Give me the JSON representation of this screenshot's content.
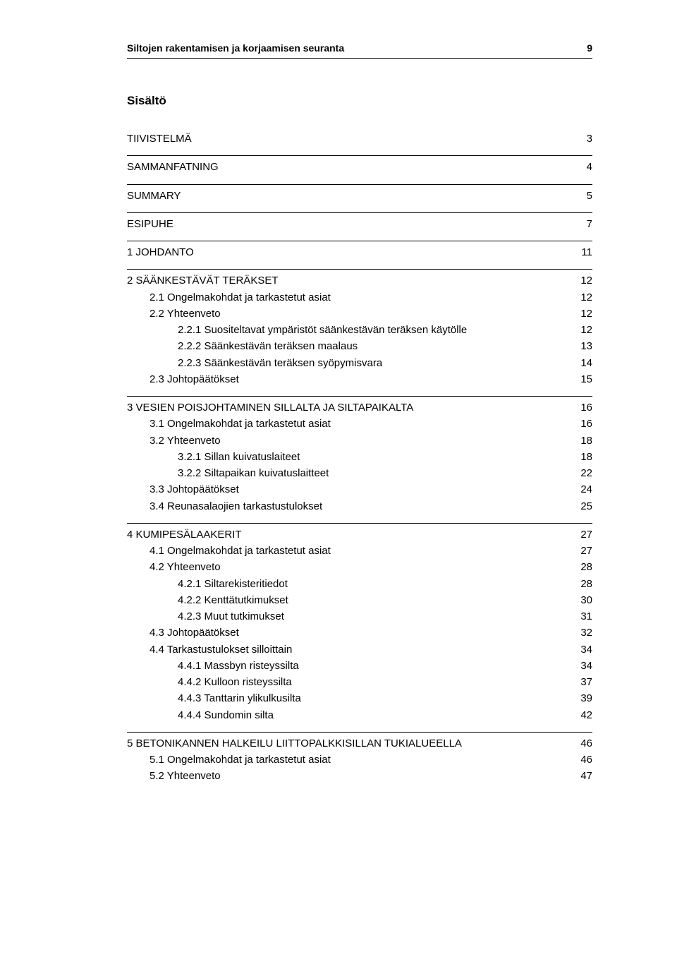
{
  "header": {
    "title": "Siltojen rakentamisen ja korjaamisen seuranta",
    "page_number": "9"
  },
  "section_title": "Sisältö",
  "toc": [
    {
      "label": "TIIVISTELMÄ",
      "page": "3",
      "level": 0,
      "rule": false,
      "gap": true
    },
    {
      "label": "SAMMANFATNING",
      "page": "4",
      "level": 0,
      "rule": true,
      "gap": true
    },
    {
      "label": "SUMMARY",
      "page": "5",
      "level": 0,
      "rule": true,
      "gap": true
    },
    {
      "label": "ESIPUHE",
      "page": "7",
      "level": 0,
      "rule": true,
      "gap": true
    },
    {
      "label": "1   JOHDANTO",
      "page": "11",
      "level": 0,
      "rule": true,
      "gap": true
    },
    {
      "label": "2   SÄÄNKESTÄVÄT TERÄKSET",
      "page": "12",
      "level": 0,
      "rule": true,
      "gap": false
    },
    {
      "label": "2.1   Ongelmakohdat ja tarkastetut asiat",
      "page": "12",
      "level": 1,
      "rule": false,
      "gap": false
    },
    {
      "label": "2.2   Yhteenveto",
      "page": "12",
      "level": 1,
      "rule": false,
      "gap": false
    },
    {
      "label": "2.2.1   Suositeltavat ympäristöt säänkestävän teräksen käytölle",
      "page": "12",
      "level": 2,
      "rule": false,
      "gap": false
    },
    {
      "label": "2.2.2   Säänkestävän teräksen maalaus",
      "page": "13",
      "level": 2,
      "rule": false,
      "gap": false
    },
    {
      "label": "2.2.3   Säänkestävän teräksen syöpymisvara",
      "page": "14",
      "level": 2,
      "rule": false,
      "gap": false
    },
    {
      "label": "2.3   Johtopäätökset",
      "page": "15",
      "level": 1,
      "rule": false,
      "gap": true
    },
    {
      "label": "3   VESIEN POISJOHTAMINEN SILLALTA JA SILTAPAIKALTA",
      "page": "16",
      "level": 0,
      "rule": true,
      "gap": false
    },
    {
      "label": "3.1   Ongelmakohdat ja tarkastetut asiat",
      "page": "16",
      "level": 1,
      "rule": false,
      "gap": false
    },
    {
      "label": "3.2   Yhteenveto",
      "page": "18",
      "level": 1,
      "rule": false,
      "gap": false
    },
    {
      "label": "3.2.1   Sillan kuivatuslaiteet",
      "page": "18",
      "level": 2,
      "rule": false,
      "gap": false
    },
    {
      "label": "3.2.2   Siltapaikan kuivatuslaitteet",
      "page": "22",
      "level": 2,
      "rule": false,
      "gap": false
    },
    {
      "label": "3.3   Johtopäätökset",
      "page": "24",
      "level": 1,
      "rule": false,
      "gap": false
    },
    {
      "label": "3.4   Reunasalaojien tarkastustulokset",
      "page": "25",
      "level": 1,
      "rule": false,
      "gap": true
    },
    {
      "label": "4   KUMIPESÄLAAKERIT",
      "page": "27",
      "level": 0,
      "rule": true,
      "gap": false
    },
    {
      "label": "4.1   Ongelmakohdat ja tarkastetut asiat",
      "page": "27",
      "level": 1,
      "rule": false,
      "gap": false
    },
    {
      "label": "4.2   Yhteenveto",
      "page": "28",
      "level": 1,
      "rule": false,
      "gap": false
    },
    {
      "label": "4.2.1   Siltarekisteritiedot",
      "page": "28",
      "level": 2,
      "rule": false,
      "gap": false
    },
    {
      "label": "4.2.2   Kenttätutkimukset",
      "page": "30",
      "level": 2,
      "rule": false,
      "gap": false
    },
    {
      "label": "4.2.3   Muut tutkimukset",
      "page": "31",
      "level": 2,
      "rule": false,
      "gap": false
    },
    {
      "label": "4.3   Johtopäätökset",
      "page": "32",
      "level": 1,
      "rule": false,
      "gap": false
    },
    {
      "label": "4.4   Tarkastustulokset silloittain",
      "page": "34",
      "level": 1,
      "rule": false,
      "gap": false
    },
    {
      "label": "4.4.1   Massbyn risteyssilta",
      "page": "34",
      "level": 2,
      "rule": false,
      "gap": false
    },
    {
      "label": "4.4.2   Kulloon risteyssilta",
      "page": "37",
      "level": 2,
      "rule": false,
      "gap": false
    },
    {
      "label": "4.4.3   Tanttarin ylikulkusilta",
      "page": "39",
      "level": 2,
      "rule": false,
      "gap": false
    },
    {
      "label": "4.4.4   Sundomin silta",
      "page": "42",
      "level": 2,
      "rule": false,
      "gap": true
    },
    {
      "label": "5   BETONIKANNEN HALKEILU LIITTOPALKKISILLAN TUKIALUEELLA",
      "page": "46",
      "level": 0,
      "rule": true,
      "gap": false
    },
    {
      "label": "5.1   Ongelmakohdat ja tarkastetut asiat",
      "page": "46",
      "level": 1,
      "rule": false,
      "gap": false
    },
    {
      "label": "5.2   Yhteenveto",
      "page": "47",
      "level": 1,
      "rule": false,
      "gap": false
    }
  ]
}
